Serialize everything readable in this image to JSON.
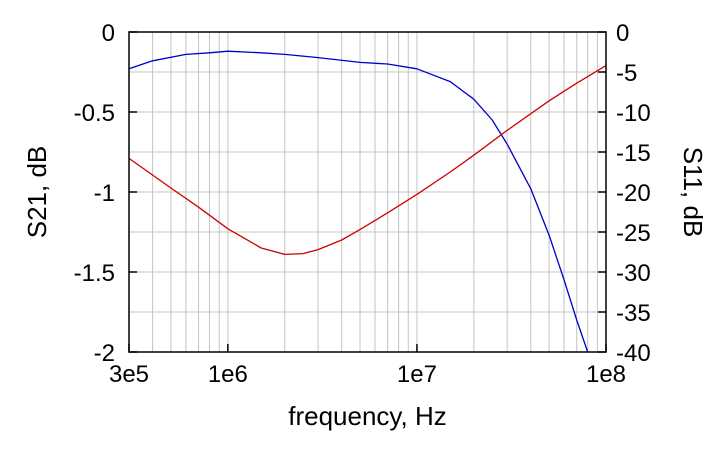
{
  "chart_data": {
    "type": "line",
    "xlabel": "frequency, Hz",
    "ylabel": "S21, dB",
    "y2label": "S11, dB",
    "xscale": "log",
    "xlim": [
      300000,
      100000000
    ],
    "ylim": [
      -2,
      0
    ],
    "y2lim": [
      -40,
      0
    ],
    "grid": true,
    "x_ticks": [
      {
        "value": 300000,
        "label": "3e5"
      },
      {
        "value": 1000000,
        "label": "1e6"
      },
      {
        "value": 10000000,
        "label": "1e7"
      },
      {
        "value": 100000000,
        "label": "1e8"
      }
    ],
    "y_ticks": [
      {
        "value": 0,
        "label": "0"
      },
      {
        "value": -0.5,
        "label": "-0.5"
      },
      {
        "value": -1,
        "label": "-1"
      },
      {
        "value": -1.5,
        "label": "-1.5"
      },
      {
        "value": -2,
        "label": "-2"
      }
    ],
    "y2_ticks": [
      {
        "value": 0,
        "label": "0"
      },
      {
        "value": -5,
        "label": "-5"
      },
      {
        "value": -10,
        "label": "-10"
      },
      {
        "value": -15,
        "label": "-15"
      },
      {
        "value": -20,
        "label": "-20"
      },
      {
        "value": -25,
        "label": "-25"
      },
      {
        "value": -30,
        "label": "-30"
      },
      {
        "value": -35,
        "label": "-35"
      },
      {
        "value": -40,
        "label": "-40"
      }
    ],
    "series": [
      {
        "axis": "left",
        "color": "#0000cc",
        "x": [
          300000,
          400000,
          600000,
          800000,
          1000000,
          1500000,
          2000000,
          3000000,
          5000000,
          7000000,
          10000000,
          15000000,
          20000000,
          25000000,
          30000000,
          40000000,
          50000000,
          60000000,
          70000000,
          80000000
        ],
        "y": [
          -0.23,
          -0.18,
          -0.14,
          -0.13,
          -0.12,
          -0.13,
          -0.14,
          -0.16,
          -0.19,
          -0.2,
          -0.23,
          -0.31,
          -0.42,
          -0.55,
          -0.7,
          -0.98,
          -1.27,
          -1.55,
          -1.8,
          -2.0
        ]
      },
      {
        "axis": "right",
        "color": "#cc0000",
        "x": [
          300000,
          500000,
          700000,
          1000000,
          1500000,
          2000000,
          2500000,
          3000000,
          4000000,
          5000000,
          7000000,
          10000000,
          15000000,
          20000000,
          30000000,
          50000000,
          70000000,
          100000000
        ],
        "y": [
          -15.8,
          -19.5,
          -21.9,
          -24.6,
          -27,
          -27.8,
          -27.7,
          -27.2,
          -26,
          -24.7,
          -22.6,
          -20.3,
          -17.5,
          -15.4,
          -12.3,
          -8.6,
          -6.4,
          -4.2
        ]
      }
    ]
  }
}
